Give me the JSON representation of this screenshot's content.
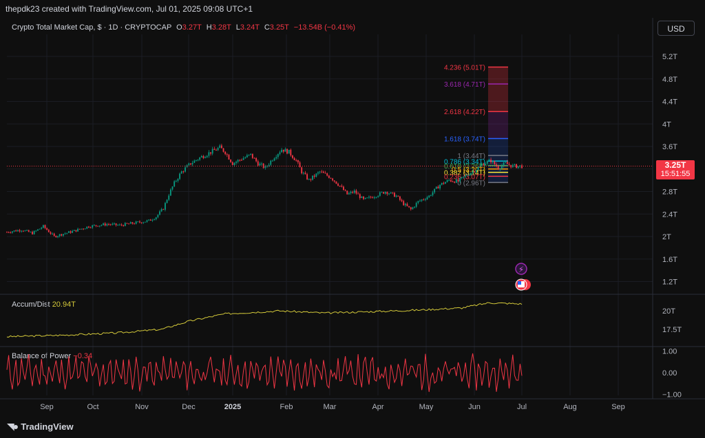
{
  "credit": "thepdk23 created with TradingView.com, Jul 01, 2025 09:08 UTC+1",
  "header": {
    "symbol": "Crypto Total Market Cap, $ · 1D · CRYPTOCAP",
    "o_label": "O",
    "o_val": "3.27T",
    "h_label": "H",
    "h_val": "3.28T",
    "l_label": "L",
    "l_val": "3.24T",
    "c_label": "C",
    "c_val": "3.25T",
    "change": "−13.54B (−0.41%)"
  },
  "currency_button": "USD",
  "price_badge": {
    "price": "3.25T",
    "countdown": "15:51:55"
  },
  "indicators": {
    "ad_label": "Accum/Dist",
    "ad_value": "20.94T",
    "bop_label": "Balance of Power",
    "bop_value": "−0.34"
  },
  "footer": {
    "brand": "TradingView"
  },
  "colors": {
    "up": "#089981",
    "down": "#f23645",
    "ad_line": "#d4c93a",
    "bop_line": "#f23645",
    "background": "#0f0f0f"
  },
  "chart_data": {
    "type": "candlestick",
    "title": "Crypto Total Market Cap, $ · 1D · CRYPTOCAP",
    "x_ticks": [
      "Sep",
      "Oct",
      "Nov",
      "Dec",
      "2025",
      "Feb",
      "Mar",
      "Apr",
      "May",
      "Jun",
      "Jul",
      "Aug",
      "Sep"
    ],
    "y_ticks": [
      "1.2T",
      "1.6T",
      "2T",
      "2.4T",
      "2.8T",
      "3.2T",
      "3.6T",
      "4T",
      "4.4T",
      "4.8T",
      "5.2T"
    ],
    "y_range": [
      1.05,
      5.35
    ],
    "last_price": 3.25,
    "price_path": [
      [
        0,
        2.08
      ],
      [
        8,
        2.12
      ],
      [
        14,
        2.06
      ],
      [
        20,
        2.18
      ],
      [
        26,
        2.0
      ],
      [
        30,
        2.04
      ],
      [
        37,
        2.1
      ],
      [
        45,
        2.18
      ],
      [
        55,
        2.22
      ],
      [
        62,
        2.2
      ],
      [
        70,
        2.24
      ],
      [
        78,
        2.28
      ],
      [
        82,
        2.35
      ],
      [
        86,
        2.5
      ],
      [
        89,
        2.75
      ],
      [
        92,
        2.95
      ],
      [
        96,
        3.15
      ],
      [
        101,
        3.3
      ],
      [
        106,
        3.4
      ],
      [
        112,
        3.5
      ],
      [
        117,
        3.58
      ],
      [
        120,
        3.5
      ],
      [
        124,
        3.3
      ],
      [
        129,
        3.38
      ],
      [
        134,
        3.45
      ],
      [
        138,
        3.3
      ],
      [
        142,
        3.22
      ],
      [
        147,
        3.42
      ],
      [
        151,
        3.55
      ],
      [
        155,
        3.5
      ],
      [
        159,
        3.35
      ],
      [
        162,
        3.15
      ],
      [
        166,
        3.0
      ],
      [
        172,
        3.15
      ],
      [
        178,
        3.05
      ],
      [
        183,
        2.9
      ],
      [
        187,
        2.75
      ],
      [
        191,
        2.8
      ],
      [
        196,
        2.65
      ],
      [
        202,
        2.72
      ],
      [
        208,
        2.8
      ],
      [
        214,
        2.72
      ],
      [
        218,
        2.58
      ],
      [
        222,
        2.48
      ],
      [
        226,
        2.62
      ],
      [
        232,
        2.72
      ],
      [
        238,
        2.92
      ],
      [
        243,
        3.0
      ],
      [
        248,
        2.98
      ],
      [
        253,
        3.1
      ],
      [
        258,
        3.2
      ],
      [
        262,
        3.3
      ],
      [
        266,
        3.35
      ],
      [
        270,
        3.22
      ],
      [
        274,
        3.3
      ],
      [
        278,
        3.25
      ],
      [
        283,
        3.25
      ]
    ],
    "fibonacci": [
      {
        "label": "4.236 (5.01T)",
        "value": 5.01,
        "color": "#f23645"
      },
      {
        "label": "3.618 (4.71T)",
        "value": 4.71,
        "color": "#9c27b0"
      },
      {
        "label": "2.618 (4.22T)",
        "value": 4.22,
        "color": "#f23645"
      },
      {
        "label": "1.618 (3.74T)",
        "value": 3.74,
        "color": "#2962ff"
      },
      {
        "label": "1 (3.44T)",
        "value": 3.44,
        "color": "#787b86"
      },
      {
        "label": "0.786 (3.34T)",
        "value": 3.34,
        "color": "#00bcd4"
      },
      {
        "label": "0.618 (3.26T)",
        "value": 3.26,
        "color": "#4caf50"
      },
      {
        "label": "0.5 (3.20T)",
        "value": 3.2,
        "color": "#ff9800"
      },
      {
        "label": "0.382 (3.14T)",
        "value": 3.14,
        "color": "#ffeb3b"
      },
      {
        "label": "0.236 (3.07T)",
        "value": 3.07,
        "color": "#f23645"
      },
      {
        "label": "0 (2.96T)",
        "value": 2.96,
        "color": "#787b86"
      }
    ],
    "accum_dist": {
      "y_ticks": [
        "17.5T",
        "20T"
      ],
      "y_range": [
        16.0,
        21.5
      ],
      "path": [
        [
          0,
          16.5
        ],
        [
          30,
          16.7
        ],
        [
          60,
          17.0
        ],
        [
          85,
          17.5
        ],
        [
          100,
          18.6
        ],
        [
          120,
          19.6
        ],
        [
          150,
          20.0
        ],
        [
          175,
          19.7
        ],
        [
          200,
          19.9
        ],
        [
          225,
          20.1
        ],
        [
          250,
          20.4
        ],
        [
          265,
          21.1
        ],
        [
          283,
          20.94
        ]
      ]
    },
    "balance_of_power": {
      "y_ticks": [
        "1.00",
        "0.00",
        "−1.00"
      ],
      "y_range": [
        -1.05,
        1.05
      ]
    }
  }
}
